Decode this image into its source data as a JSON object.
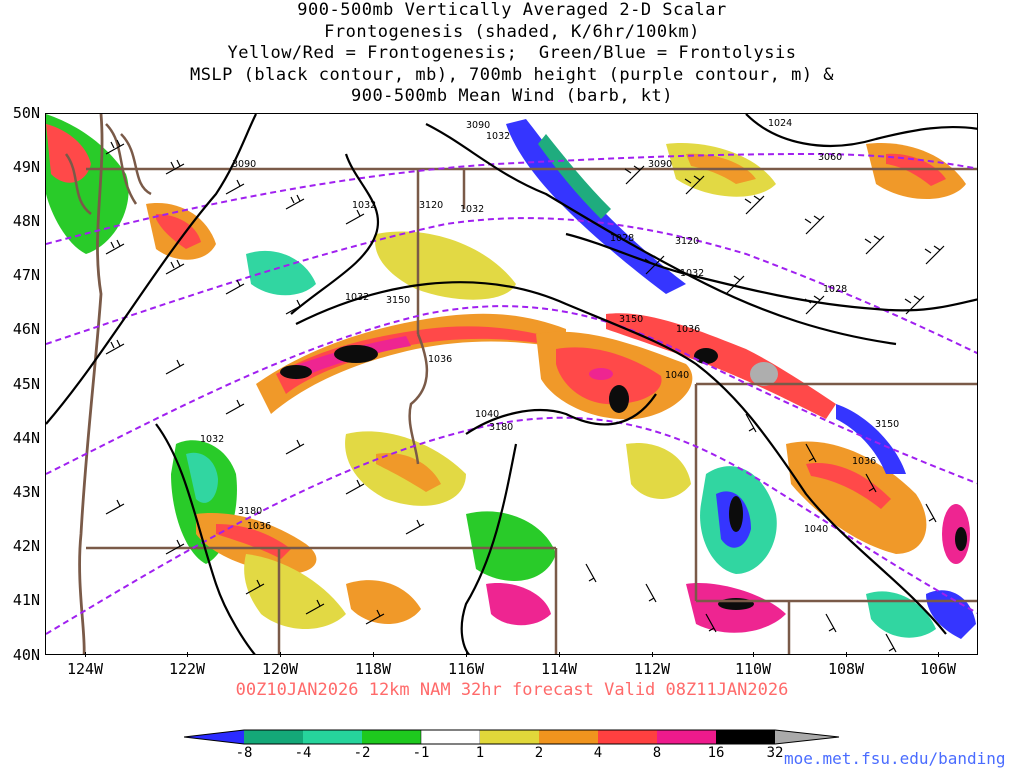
{
  "title_lines": [
    "900-500mb Vertically Averaged 2-D Scalar",
    "Frontogenesis (shaded, K/6hr/100km)",
    "Yellow/Red = Frontogenesis;  Green/Blue = Frontolysis",
    "MSLP (black contour, mb), 700mb height (purple contour, m) &",
    "900-500mb Mean Wind (barb, kt)"
  ],
  "valid_text": "00Z10JAN2026 12km NAM 32hr forecast Valid 08Z11JAN2026",
  "credit": "moe.met.fsu.edu/banding",
  "lat_labels": [
    "50N",
    "49N",
    "48N",
    "47N",
    "46N",
    "45N",
    "44N",
    "43N",
    "42N",
    "41N",
    "40N"
  ],
  "lon_labels": [
    "124W",
    "122W",
    "120W",
    "118W",
    "116W",
    "114W",
    "112W",
    "110W",
    "108W",
    "106W"
  ],
  "colorbar": {
    "labels": [
      "-8",
      "-4",
      "-2",
      "-1",
      "1",
      "2",
      "4",
      "8",
      "16",
      "32"
    ],
    "colors": [
      "#2b2bff",
      "#14a878",
      "#26d49c",
      "#1ec91e",
      "#ffffff",
      "#e1d83a",
      "#f0941e",
      "#ff4040",
      "#ee1a8c",
      "#000000",
      "#aaaaaa"
    ]
  },
  "mslp_labels": [
    "1032",
    "1032",
    "1024",
    "1028",
    "1032",
    "1036",
    "1032",
    "1036",
    "1040",
    "1040",
    "1032",
    "1036",
    "1036",
    "1040",
    "1028",
    "1032"
  ],
  "height_labels": [
    "3090",
    "3090",
    "3090",
    "3060",
    "3120",
    "3120",
    "3150",
    "3150",
    "3180",
    "3180",
    "3150"
  ],
  "map_colors": {
    "mslp": "#000000",
    "height": "#a020f0",
    "borders": "#7a5a48"
  }
}
